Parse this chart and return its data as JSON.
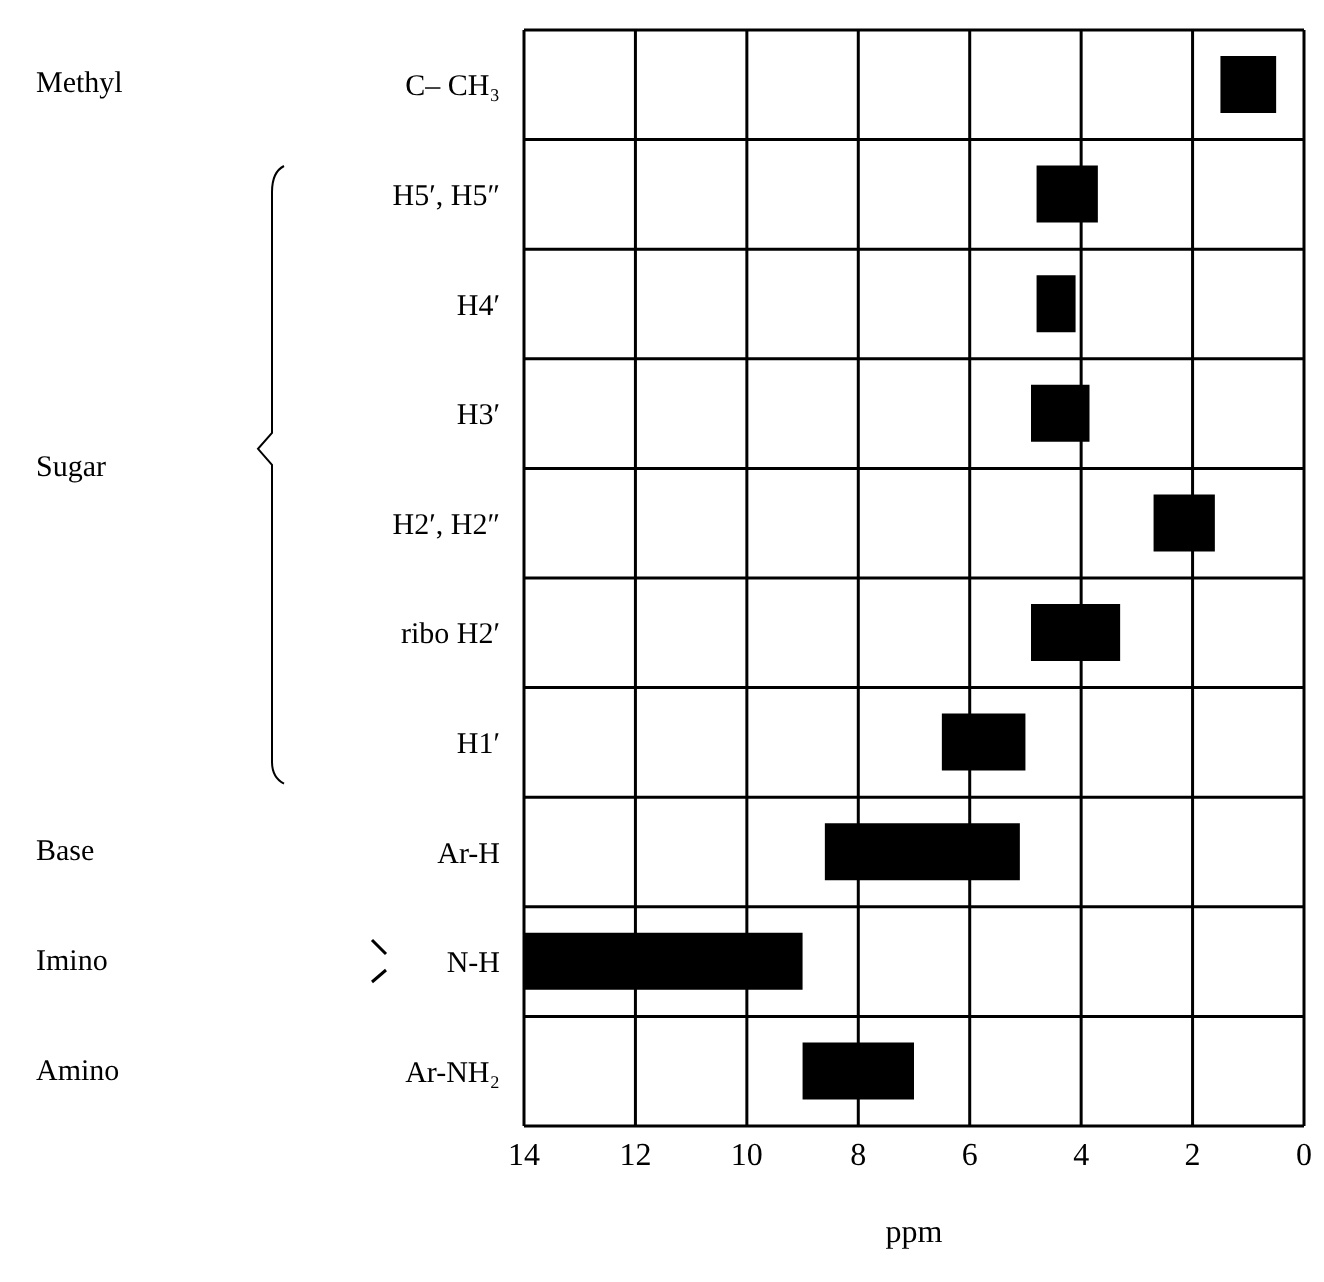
{
  "chart_data": {
    "type": "bar",
    "orientation": "horizontal",
    "xlabel": "ppm",
    "categories": [
      "C– CH₃",
      "H5′, H5″",
      "H4′",
      "H3′",
      "H2′, H2″",
      "ribo H2′",
      "H1′",
      "Ar-H",
      "N-H",
      "Ar-NH₂"
    ],
    "base": [
      0.5,
      3.7,
      4.1,
      3.85,
      1.6,
      3.3,
      5.0,
      5.1,
      9.0,
      7.0
    ],
    "values": [
      1.0,
      1.1,
      0.7,
      1.05,
      1.1,
      1.6,
      1.5,
      3.5,
      5.0,
      2.0
    ],
    "color": "#000000",
    "xlim": [
      14,
      0
    ],
    "xticks": [
      14,
      12,
      10,
      8,
      6,
      4,
      2,
      0
    ],
    "grid": true,
    "annotations": [
      "Methyl",
      "Sugar",
      "Base",
      "Imino",
      "Amino"
    ]
  }
}
